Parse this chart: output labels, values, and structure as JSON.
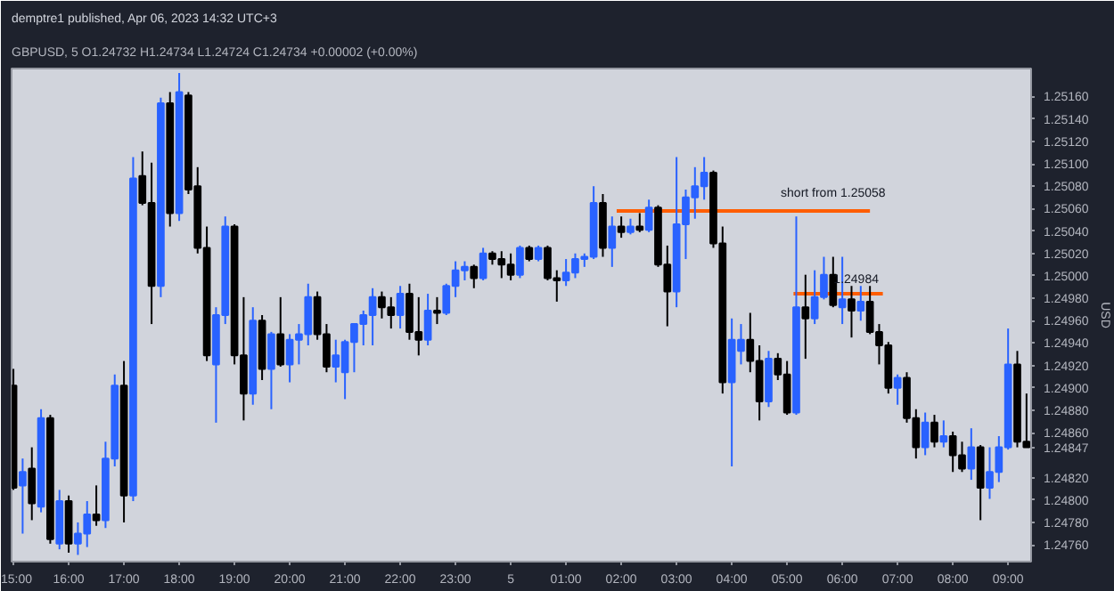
{
  "chart_data": {
    "type": "candlestick",
    "title": "demptre1 published, Apr 06, 2023 14:32 UTC+3",
    "subtitle": "GBPUSD, 5  O1.24732  H1.24734  L1.24724  C1.24734  +0.00002 (+0.00%)",
    "ylabel": "USD",
    "x": [
      "2023-04-04T15:00",
      "2023-04-04T15:10",
      "2023-04-04T15:20",
      "2023-04-04T15:30",
      "2023-04-04T15:40",
      "2023-04-04T15:50",
      "2023-04-04T16:00",
      "2023-04-04T16:10",
      "2023-04-04T16:20",
      "2023-04-04T16:30",
      "2023-04-04T16:40",
      "2023-04-04T16:50",
      "2023-04-04T17:00",
      "2023-04-04T17:10",
      "2023-04-04T17:20",
      "2023-04-04T17:30",
      "2023-04-04T17:40",
      "2023-04-04T17:50",
      "2023-04-04T18:00",
      "2023-04-04T18:10",
      "2023-04-04T18:20",
      "2023-04-04T18:30",
      "2023-04-04T18:40",
      "2023-04-04T18:50",
      "2023-04-04T19:00",
      "2023-04-04T19:10",
      "2023-04-04T19:20",
      "2023-04-04T19:30",
      "2023-04-04T19:40",
      "2023-04-04T19:50",
      "2023-04-04T20:00",
      "2023-04-04T20:10",
      "2023-04-04T20:20",
      "2023-04-04T20:30",
      "2023-04-04T20:40",
      "2023-04-04T20:50",
      "2023-04-04T21:00",
      "2023-04-04T21:10",
      "2023-04-04T21:20",
      "2023-04-04T21:30",
      "2023-04-04T21:40",
      "2023-04-04T21:50",
      "2023-04-04T22:00",
      "2023-04-04T22:10",
      "2023-04-04T22:20",
      "2023-04-04T22:30",
      "2023-04-04T22:40",
      "2023-04-04T22:50",
      "2023-04-04T23:00",
      "2023-04-04T23:10",
      "2023-04-04T23:20",
      "2023-04-04T23:30",
      "2023-04-04T23:40",
      "2023-04-04T23:50",
      "2023-04-05T00:00",
      "2023-04-05T00:10",
      "2023-04-05T00:20",
      "2023-04-05T00:30",
      "2023-04-05T00:40",
      "2023-04-05T00:50",
      "2023-04-05T01:00",
      "2023-04-05T01:10",
      "2023-04-05T01:20",
      "2023-04-05T01:30",
      "2023-04-05T01:40",
      "2023-04-05T01:50",
      "2023-04-05T02:00",
      "2023-04-05T02:10",
      "2023-04-05T02:20",
      "2023-04-05T02:30",
      "2023-04-05T02:40",
      "2023-04-05T02:50",
      "2023-04-05T03:00",
      "2023-04-05T03:10",
      "2023-04-05T03:20",
      "2023-04-05T03:30",
      "2023-04-05T03:40",
      "2023-04-05T03:50",
      "2023-04-05T04:00",
      "2023-04-05T04:10",
      "2023-04-05T04:20",
      "2023-04-05T04:30",
      "2023-04-05T04:40",
      "2023-04-05T04:50",
      "2023-04-05T05:00",
      "2023-04-05T05:10",
      "2023-04-05T05:20",
      "2023-04-05T05:30",
      "2023-04-05T05:40",
      "2023-04-05T05:50",
      "2023-04-05T06:00",
      "2023-04-05T06:10",
      "2023-04-05T06:20",
      "2023-04-05T06:30",
      "2023-04-05T06:40",
      "2023-04-05T06:50",
      "2023-04-05T07:00",
      "2023-04-05T07:10",
      "2023-04-05T07:20",
      "2023-04-05T07:30",
      "2023-04-05T07:40",
      "2023-04-05T07:50",
      "2023-04-05T08:00",
      "2023-04-05T08:10",
      "2023-04-05T08:20",
      "2023-04-05T08:30",
      "2023-04-05T08:40",
      "2023-04-05T08:50",
      "2023-04-05T09:00",
      "2023-04-05T09:10",
      "2023-04-05T09:20"
    ],
    "ohlc": [
      [
        1.24902,
        1.24917,
        1.24809,
        1.24811
      ],
      [
        1.24813,
        1.24837,
        1.2477,
        1.24825
      ],
      [
        1.24828,
        1.24847,
        1.24782,
        1.24797
      ],
      [
        1.24794,
        1.24881,
        1.24789,
        1.24873
      ],
      [
        1.24873,
        1.24876,
        1.24761,
        1.24765
      ],
      [
        1.24761,
        1.24809,
        1.24756,
        1.24799
      ],
      [
        1.24799,
        1.24804,
        1.24753,
        1.24761
      ],
      [
        1.24761,
        1.2478,
        1.24751,
        1.2477
      ],
      [
        1.2477,
        1.24799,
        1.24758,
        1.24787
      ],
      [
        1.24787,
        1.24813,
        1.24777,
        1.24782
      ],
      [
        1.24782,
        1.24852,
        1.24775,
        1.24837
      ],
      [
        1.24837,
        1.24912,
        1.2483,
        1.24902
      ],
      [
        1.24902,
        1.24924,
        1.2478,
        1.24804
      ],
      [
        1.24804,
        1.25106,
        1.24799,
        1.25087
      ],
      [
        1.25089,
        1.25111,
        1.25063,
        1.25065
      ],
      [
        1.25065,
        1.25101,
        1.24957,
        1.24991
      ],
      [
        1.24991,
        1.25159,
        1.24981,
        1.25154
      ],
      [
        1.25154,
        1.25164,
        1.25044,
        1.25056
      ],
      [
        1.25056,
        1.25181,
        1.25049,
        1.25164
      ],
      [
        1.25161,
        1.25164,
        1.25073,
        1.25077
      ],
      [
        1.2508,
        1.25097,
        1.2502,
        1.25025
      ],
      [
        1.25025,
        1.25044,
        1.24924,
        1.24929
      ],
      [
        1.24921,
        1.24972,
        1.24869,
        1.24965
      ],
      [
        1.24965,
        1.25053,
        1.24957,
        1.25044
      ],
      [
        1.25044,
        1.25046,
        1.24921,
        1.24929
      ],
      [
        1.24929,
        1.24981,
        1.24871,
        1.24895
      ],
      [
        1.24895,
        1.24972,
        1.24885,
        1.2496
      ],
      [
        1.2496,
        1.24965,
        1.24907,
        1.24917
      ],
      [
        1.24917,
        1.2495,
        1.24881,
        1.24948
      ],
      [
        1.24948,
        1.24981,
        1.24919,
        1.24921
      ],
      [
        1.24921,
        1.24948,
        1.24905,
        1.24943
      ],
      [
        1.24943,
        1.24957,
        1.24921,
        1.24948
      ],
      [
        1.24948,
        1.24993,
        1.24938,
        1.24981
      ],
      [
        1.24981,
        1.24986,
        1.24943,
        1.24948
      ],
      [
        1.24948,
        1.24957,
        1.24914,
        1.24919
      ],
      [
        1.24919,
        1.24943,
        1.24905,
        1.24929
      ],
      [
        1.24914,
        1.24943,
        1.2489,
        1.24941
      ],
      [
        1.24941,
        1.24957,
        1.24914,
        1.24957
      ],
      [
        1.24957,
        1.24969,
        1.24938,
        1.24965
      ],
      [
        1.24965,
        1.24989,
        1.24938,
        1.24981
      ],
      [
        1.24981,
        1.24986,
        1.24962,
        1.24972
      ],
      [
        1.24972,
        1.24981,
        1.24953,
        1.24965
      ],
      [
        1.24965,
        1.24991,
        1.24953,
        1.24984
      ],
      [
        1.24984,
        1.24993,
        1.24943,
        1.2495
      ],
      [
        1.2495,
        1.24981,
        1.24929,
        1.24943
      ],
      [
        1.24943,
        1.24984,
        1.24938,
        1.24969
      ],
      [
        1.24969,
        1.24981,
        1.24957,
        1.24967
      ],
      [
        1.24967,
        1.24993,
        1.24965,
        1.24991
      ],
      [
        1.24991,
        1.25013,
        1.24981,
        1.25005
      ],
      [
        1.25005,
        1.25013,
        1.24996,
        1.25008
      ],
      [
        1.25008,
        1.2501,
        1.24989,
        1.24998
      ],
      [
        1.24998,
        1.25025,
        1.24996,
        1.2502
      ],
      [
        1.2502,
        1.25022,
        1.2501,
        1.25015
      ],
      [
        1.25015,
        1.25022,
        1.24998,
        1.2501
      ],
      [
        1.2501,
        1.2502,
        1.24996,
        1.25001
      ],
      [
        1.25001,
        1.25027,
        1.24998,
        1.25025
      ],
      [
        1.25025,
        1.25027,
        1.25013,
        1.25015
      ],
      [
        1.25015,
        1.25027,
        1.25013,
        1.25025
      ],
      [
        1.25025,
        1.25027,
        1.24996,
        1.24998
      ],
      [
        1.24998,
        1.25005,
        1.24977,
        1.24996
      ],
      [
        1.24996,
        1.25015,
        1.24991,
        1.25003
      ],
      [
        1.25003,
        1.2502,
        1.24998,
        1.25015
      ],
      [
        1.25015,
        1.2502,
        1.25008,
        1.25017
      ],
      [
        1.25017,
        1.2508,
        1.25015,
        1.25065
      ],
      [
        1.25065,
        1.25073,
        1.25017,
        1.25025
      ],
      [
        1.25025,
        1.25053,
        1.25008,
        1.25044
      ],
      [
        1.25044,
        1.25053,
        1.25034,
        1.25039
      ],
      [
        1.25039,
        1.25051,
        1.25037,
        1.25044
      ],
      [
        1.25044,
        1.25056,
        1.25039,
        1.25041
      ],
      [
        1.25041,
        1.25068,
        1.25039,
        1.25061
      ],
      [
        1.25061,
        1.25063,
        1.25008,
        1.2501
      ],
      [
        1.2501,
        1.25027,
        1.24955,
        1.24986
      ],
      [
        1.24986,
        1.25106,
        1.24972,
        1.25046
      ],
      [
        1.25046,
        1.25077,
        1.25015,
        1.2507
      ],
      [
        1.2507,
        1.25097,
        1.25051,
        1.2508
      ],
      [
        1.2508,
        1.25106,
        1.25068,
        1.25092
      ],
      [
        1.25092,
        1.25094,
        1.25025,
        1.25029
      ],
      [
        1.25029,
        1.25044,
        1.24895,
        1.24905
      ],
      [
        1.24905,
        1.24962,
        1.2483,
        1.24943
      ],
      [
        1.24933,
        1.24957,
        1.24921,
        1.24943
      ],
      [
        1.24943,
        1.24967,
        1.24914,
        1.24924
      ],
      [
        1.24924,
        1.24938,
        1.24871,
        1.24888
      ],
      [
        1.24888,
        1.24933,
        1.24883,
        1.24926
      ],
      [
        1.24926,
        1.24931,
        1.24907,
        1.24912
      ],
      [
        1.24912,
        1.24924,
        1.24876,
        1.24878
      ],
      [
        1.24878,
        1.25053,
        1.24876,
        1.24972
      ],
      [
        1.24972,
        1.25001,
        1.24926,
        1.24962
      ],
      [
        1.24962,
        1.25005,
        1.24957,
        1.24981
      ],
      [
        1.24981,
        1.25017,
        1.24979,
        1.25001
      ],
      [
        1.25001,
        1.25017,
        1.24972,
        1.24974
      ],
      [
        1.24972,
        1.25017,
        1.24957,
        1.24979
      ],
      [
        1.24979,
        1.24991,
        1.24945,
        1.24969
      ],
      [
        1.24969,
        1.24991,
        1.2496,
        1.24977
      ],
      [
        1.24977,
        1.24991,
        1.24948,
        1.2495
      ],
      [
        1.2495,
        1.24957,
        1.24921,
        1.24938
      ],
      [
        1.24938,
        1.24941,
        1.24895,
        1.249
      ],
      [
        1.249,
        1.24912,
        1.24885,
        1.24909
      ],
      [
        1.24909,
        1.24914,
        1.24869,
        1.24873
      ],
      [
        1.24873,
        1.24881,
        1.24837,
        1.24847
      ],
      [
        1.24847,
        1.24878,
        1.2484,
        1.24869
      ],
      [
        1.24869,
        1.24876,
        1.24847,
        1.24852
      ],
      [
        1.24852,
        1.24871,
        1.24847,
        1.24857
      ],
      [
        1.24857,
        1.24861,
        1.24825,
        1.2484
      ],
      [
        1.2484,
        1.24852,
        1.24825,
        1.24828
      ],
      [
        1.24828,
        1.24864,
        1.24818,
        1.24847
      ],
      [
        1.24847,
        1.24849,
        1.24782,
        1.24811
      ],
      [
        1.24811,
        1.24847,
        1.24801,
        1.24825
      ],
      [
        1.24825,
        1.24857,
        1.24816,
        1.24847
      ],
      [
        1.24847,
        1.24953,
        1.24845,
        1.24921
      ],
      [
        1.24921,
        1.24933,
        1.24847,
        1.24852
      ],
      [
        1.24852,
        1.24895,
        1.24847,
        1.24847
      ]
    ],
    "colors": [
      "#000000",
      "#2962ff",
      "#000000",
      "#2962ff",
      "#000000",
      "#2962ff",
      "#000000",
      "#2962ff",
      "#2962ff",
      "#000000",
      "#2962ff",
      "#2962ff",
      "#000000",
      "#2962ff",
      "#000000",
      "#000000",
      "#2962ff",
      "#000000",
      "#2962ff",
      "#000000",
      "#000000",
      "#000000",
      "#2962ff",
      "#2962ff",
      "#000000",
      "#000000",
      "#2962ff",
      "#000000",
      "#2962ff",
      "#000000",
      "#2962ff",
      "#2962ff",
      "#2962ff",
      "#000000",
      "#000000",
      "#2962ff",
      "#2962ff",
      "#2962ff",
      "#2962ff",
      "#2962ff",
      "#000000",
      "#000000",
      "#2962ff",
      "#000000",
      "#000000",
      "#2962ff",
      "#000000",
      "#2962ff",
      "#2962ff",
      "#2962ff",
      "#000000",
      "#2962ff",
      "#000000",
      "#000000",
      "#000000",
      "#2962ff",
      "#000000",
      "#2962ff",
      "#000000",
      "#000000",
      "#2962ff",
      "#2962ff",
      "#2962ff",
      "#2962ff",
      "#000000",
      "#2962ff",
      "#000000",
      "#2962ff",
      "#000000",
      "#2962ff",
      "#000000",
      "#000000",
      "#2962ff",
      "#2962ff",
      "#2962ff",
      "#2962ff",
      "#000000",
      "#000000",
      "#2962ff",
      "#2962ff",
      "#000000",
      "#000000",
      "#2962ff",
      "#000000",
      "#000000",
      "#2962ff",
      "#000000",
      "#2962ff",
      "#2962ff",
      "#000000",
      "#2962ff",
      "#000000",
      "#2962ff",
      "#000000",
      "#000000",
      "#000000",
      "#2962ff",
      "#000000",
      "#000000",
      "#2962ff",
      "#000000",
      "#2962ff",
      "#000000",
      "#000000",
      "#2962ff",
      "#000000",
      "#2962ff",
      "#2962ff",
      "#2962ff",
      "#000000",
      "#000000"
    ],
    "series": [
      {
        "type": "line",
        "color": "#ff5d00",
        "x": [
          "2023-04-05T01:55",
          "2023-04-05T06:30"
        ],
        "values": [
          1.25058,
          1.25058
        ]
      },
      {
        "type": "line",
        "color": "#ff5d00",
        "x": [
          "2023-04-05T05:07",
          "2023-04-05T06:44"
        ],
        "values": [
          1.24984,
          1.24984
        ]
      }
    ],
    "annotations": [
      {
        "text": "short from 1.25058",
        "x": "2023-04-05T05:50",
        "y": 1.25058
      },
      {
        "text": "1.24984",
        "x": "2023-04-05T06:15",
        "y": 1.24984
      }
    ],
    "xlim": [
      "2023-04-04T14:58",
      "2023-04-05T09:25"
    ],
    "xticks": [
      {
        "value": "2023-04-04T15:00",
        "label": "15:00"
      },
      {
        "value": "2023-04-04T16:00",
        "label": "16:00"
      },
      {
        "value": "2023-04-04T17:00",
        "label": "17:00"
      },
      {
        "value": "2023-04-04T18:00",
        "label": "18:00"
      },
      {
        "value": "2023-04-04T19:00",
        "label": "19:00"
      },
      {
        "value": "2023-04-04T20:00",
        "label": "20:00"
      },
      {
        "value": "2023-04-04T21:00",
        "label": "21:00"
      },
      {
        "value": "2023-04-04T22:00",
        "label": "22:00"
      },
      {
        "value": "2023-04-04T23:00",
        "label": "23:00"
      },
      {
        "value": "2023-04-05T00:00",
        "label": "5"
      },
      {
        "value": "2023-04-05T01:00",
        "label": "01:00"
      },
      {
        "value": "2023-04-05T02:00",
        "label": "02:00"
      },
      {
        "value": "2023-04-05T03:00",
        "label": "03:00"
      },
      {
        "value": "2023-04-05T04:00",
        "label": "04:00"
      },
      {
        "value": "2023-04-05T05:00",
        "label": "05:00"
      },
      {
        "value": "2023-04-05T06:00",
        "label": "06:00"
      },
      {
        "value": "2023-04-05T07:00",
        "label": "07:00"
      },
      {
        "value": "2023-04-05T08:00",
        "label": "08:00"
      },
      {
        "value": "2023-04-05T09:00",
        "label": "09:00"
      }
    ],
    "ylim": [
      1.24745,
      1.25185
    ],
    "yticks": [
      {
        "value": 1.2476,
        "label": "1.24760"
      },
      {
        "value": 1.2478,
        "label": "1.24780"
      },
      {
        "value": 1.248,
        "label": "1.24800"
      },
      {
        "value": 1.2482,
        "label": "1.24820"
      },
      {
        "value": 1.24847,
        "label": "1.24847"
      },
      {
        "value": 1.2486,
        "label": "1.24860"
      },
      {
        "value": 1.2488,
        "label": "1.24880"
      },
      {
        "value": 1.249,
        "label": "1.24900"
      },
      {
        "value": 1.2492,
        "label": "1.24920"
      },
      {
        "value": 1.2494,
        "label": "1.24940"
      },
      {
        "value": 1.2496,
        "label": "1.24960"
      },
      {
        "value": 1.2498,
        "label": "1.24980"
      },
      {
        "value": 1.25,
        "label": "1.25000"
      },
      {
        "value": 1.2502,
        "label": "1.25020"
      },
      {
        "value": 1.2504,
        "label": "1.25040"
      },
      {
        "value": 1.2506,
        "label": "1.25060"
      },
      {
        "value": 1.2508,
        "label": "1.25080"
      },
      {
        "value": 1.251,
        "label": "1.25100"
      },
      {
        "value": 1.2512,
        "label": "1.25120"
      },
      {
        "value": 1.2514,
        "label": "1.25140"
      },
      {
        "value": 1.2516,
        "label": "1.25160"
      }
    ]
  }
}
